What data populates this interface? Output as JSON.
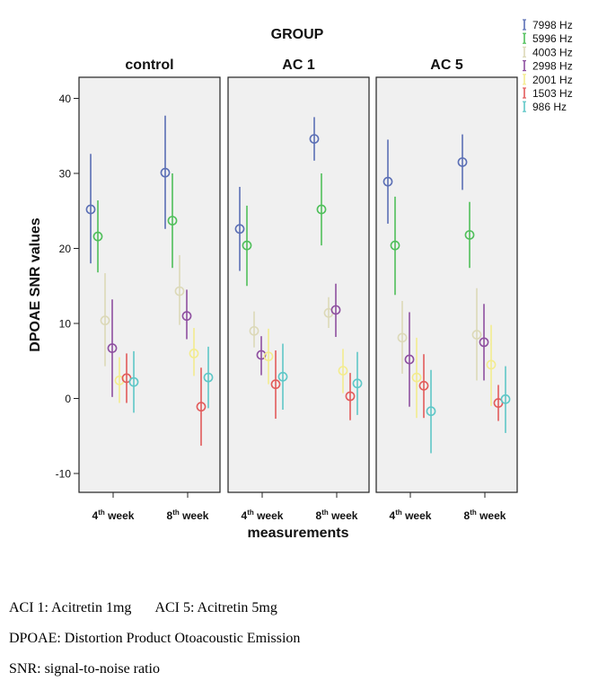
{
  "chart_data": {
    "type": "scatter",
    "title": "GROUP",
    "xlabel": "measurements",
    "ylabel": "DPOAE SNR values",
    "ylim": [
      -12,
      42
    ],
    "yticks": [
      -10,
      0,
      10,
      20,
      30,
      40
    ],
    "categories": [
      "4th week",
      "8th week"
    ],
    "panels": [
      "control",
      "AC 1",
      "AC 5"
    ],
    "legend_position": "top-right",
    "grid": false,
    "series": [
      {
        "name": "7998 Hz",
        "color": "#5b6fb5",
        "values": [
          [
            25.2,
            30.1
          ],
          [
            22.6,
            34.6
          ],
          [
            28.9,
            31.5
          ]
        ],
        "errors": [
          [
            [
              18.0,
              32.6
            ],
            [
              22.6,
              37.7
            ]
          ],
          [
            [
              17.0,
              28.2
            ],
            [
              31.7,
              37.5
            ]
          ],
          [
            [
              23.3,
              34.5
            ],
            [
              27.8,
              35.2
            ]
          ]
        ]
      },
      {
        "name": "5996 Hz",
        "color": "#4fbf5a",
        "values": [
          [
            21.6,
            23.7
          ],
          [
            20.4,
            25.2
          ],
          [
            20.4,
            21.8
          ]
        ],
        "errors": [
          [
            [
              16.8,
              26.4
            ],
            [
              17.4,
              30.0
            ]
          ],
          [
            [
              15.0,
              25.7
            ],
            [
              20.4,
              30.0
            ]
          ],
          [
            [
              13.8,
              26.9
            ],
            [
              17.4,
              26.2
            ]
          ]
        ]
      },
      {
        "name": "4003 Hz",
        "color": "#dcd9b8",
        "values": [
          [
            10.4,
            14.3
          ],
          [
            9.0,
            11.4
          ],
          [
            8.1,
            8.5
          ]
        ],
        "errors": [
          [
            [
              4.3,
              16.7
            ],
            [
              9.8,
              19.1
            ]
          ],
          [
            [
              6.8,
              11.6
            ],
            [
              9.4,
              13.5
            ]
          ],
          [
            [
              3.3,
              13.0
            ],
            [
              2.4,
              14.7
            ]
          ]
        ]
      },
      {
        "name": "2998 Hz",
        "color": "#8e4fa0",
        "values": [
          [
            6.7,
            11.0
          ],
          [
            5.8,
            11.8
          ],
          [
            5.2,
            7.5
          ]
        ],
        "errors": [
          [
            [
              0.2,
              13.2
            ],
            [
              7.9,
              14.5
            ]
          ],
          [
            [
              3.1,
              8.3
            ],
            [
              8.2,
              15.3
            ]
          ],
          [
            [
              -1.1,
              11.5
            ],
            [
              2.4,
              12.6
            ]
          ]
        ]
      },
      {
        "name": "2001 Hz",
        "color": "#f3ec8e",
        "values": [
          [
            2.4,
            6.0
          ],
          [
            5.6,
            3.7
          ],
          [
            2.8,
            4.5
          ]
        ],
        "errors": [
          [
            [
              -0.6,
              5.5
            ],
            [
              3.0,
              9.4
            ]
          ],
          [
            [
              1.9,
              9.3
            ],
            [
              0.7,
              6.6
            ]
          ],
          [
            [
              -2.6,
              8.1
            ],
            [
              -1.0,
              9.8
            ]
          ]
        ]
      },
      {
        "name": "1503 Hz",
        "color": "#e25b5b",
        "values": [
          [
            2.7,
            -1.1
          ],
          [
            1.9,
            0.3
          ],
          [
            1.7,
            -0.6
          ]
        ],
        "errors": [
          [
            [
              -0.6,
              6.0
            ],
            [
              -6.3,
              4.1
            ]
          ],
          [
            [
              -2.7,
              6.4
            ],
            [
              -2.9,
              3.4
            ]
          ],
          [
            [
              -2.6,
              5.9
            ],
            [
              -3.0,
              1.8
            ]
          ]
        ]
      },
      {
        "name": "986 Hz",
        "color": "#5ec7c7",
        "values": [
          [
            2.2,
            2.8
          ],
          [
            2.9,
            2.0
          ],
          [
            -1.7,
            -0.1
          ]
        ],
        "errors": [
          [
            [
              -1.9,
              6.3
            ],
            [
              -1.3,
              6.9
            ]
          ],
          [
            [
              -1.5,
              7.3
            ],
            [
              -2.2,
              6.2
            ]
          ],
          [
            [
              -7.3,
              3.8
            ],
            [
              -4.6,
              4.3
            ]
          ]
        ]
      }
    ]
  },
  "footnotes": {
    "line1_a": "ACI 1: Acitretin 1mg",
    "line1_b": "ACI 5: Acitretin 5mg",
    "line2": "DPOAE: Distortion Product Otoacoustic Emission",
    "line3": "SNR: signal-to-noise ratio"
  }
}
